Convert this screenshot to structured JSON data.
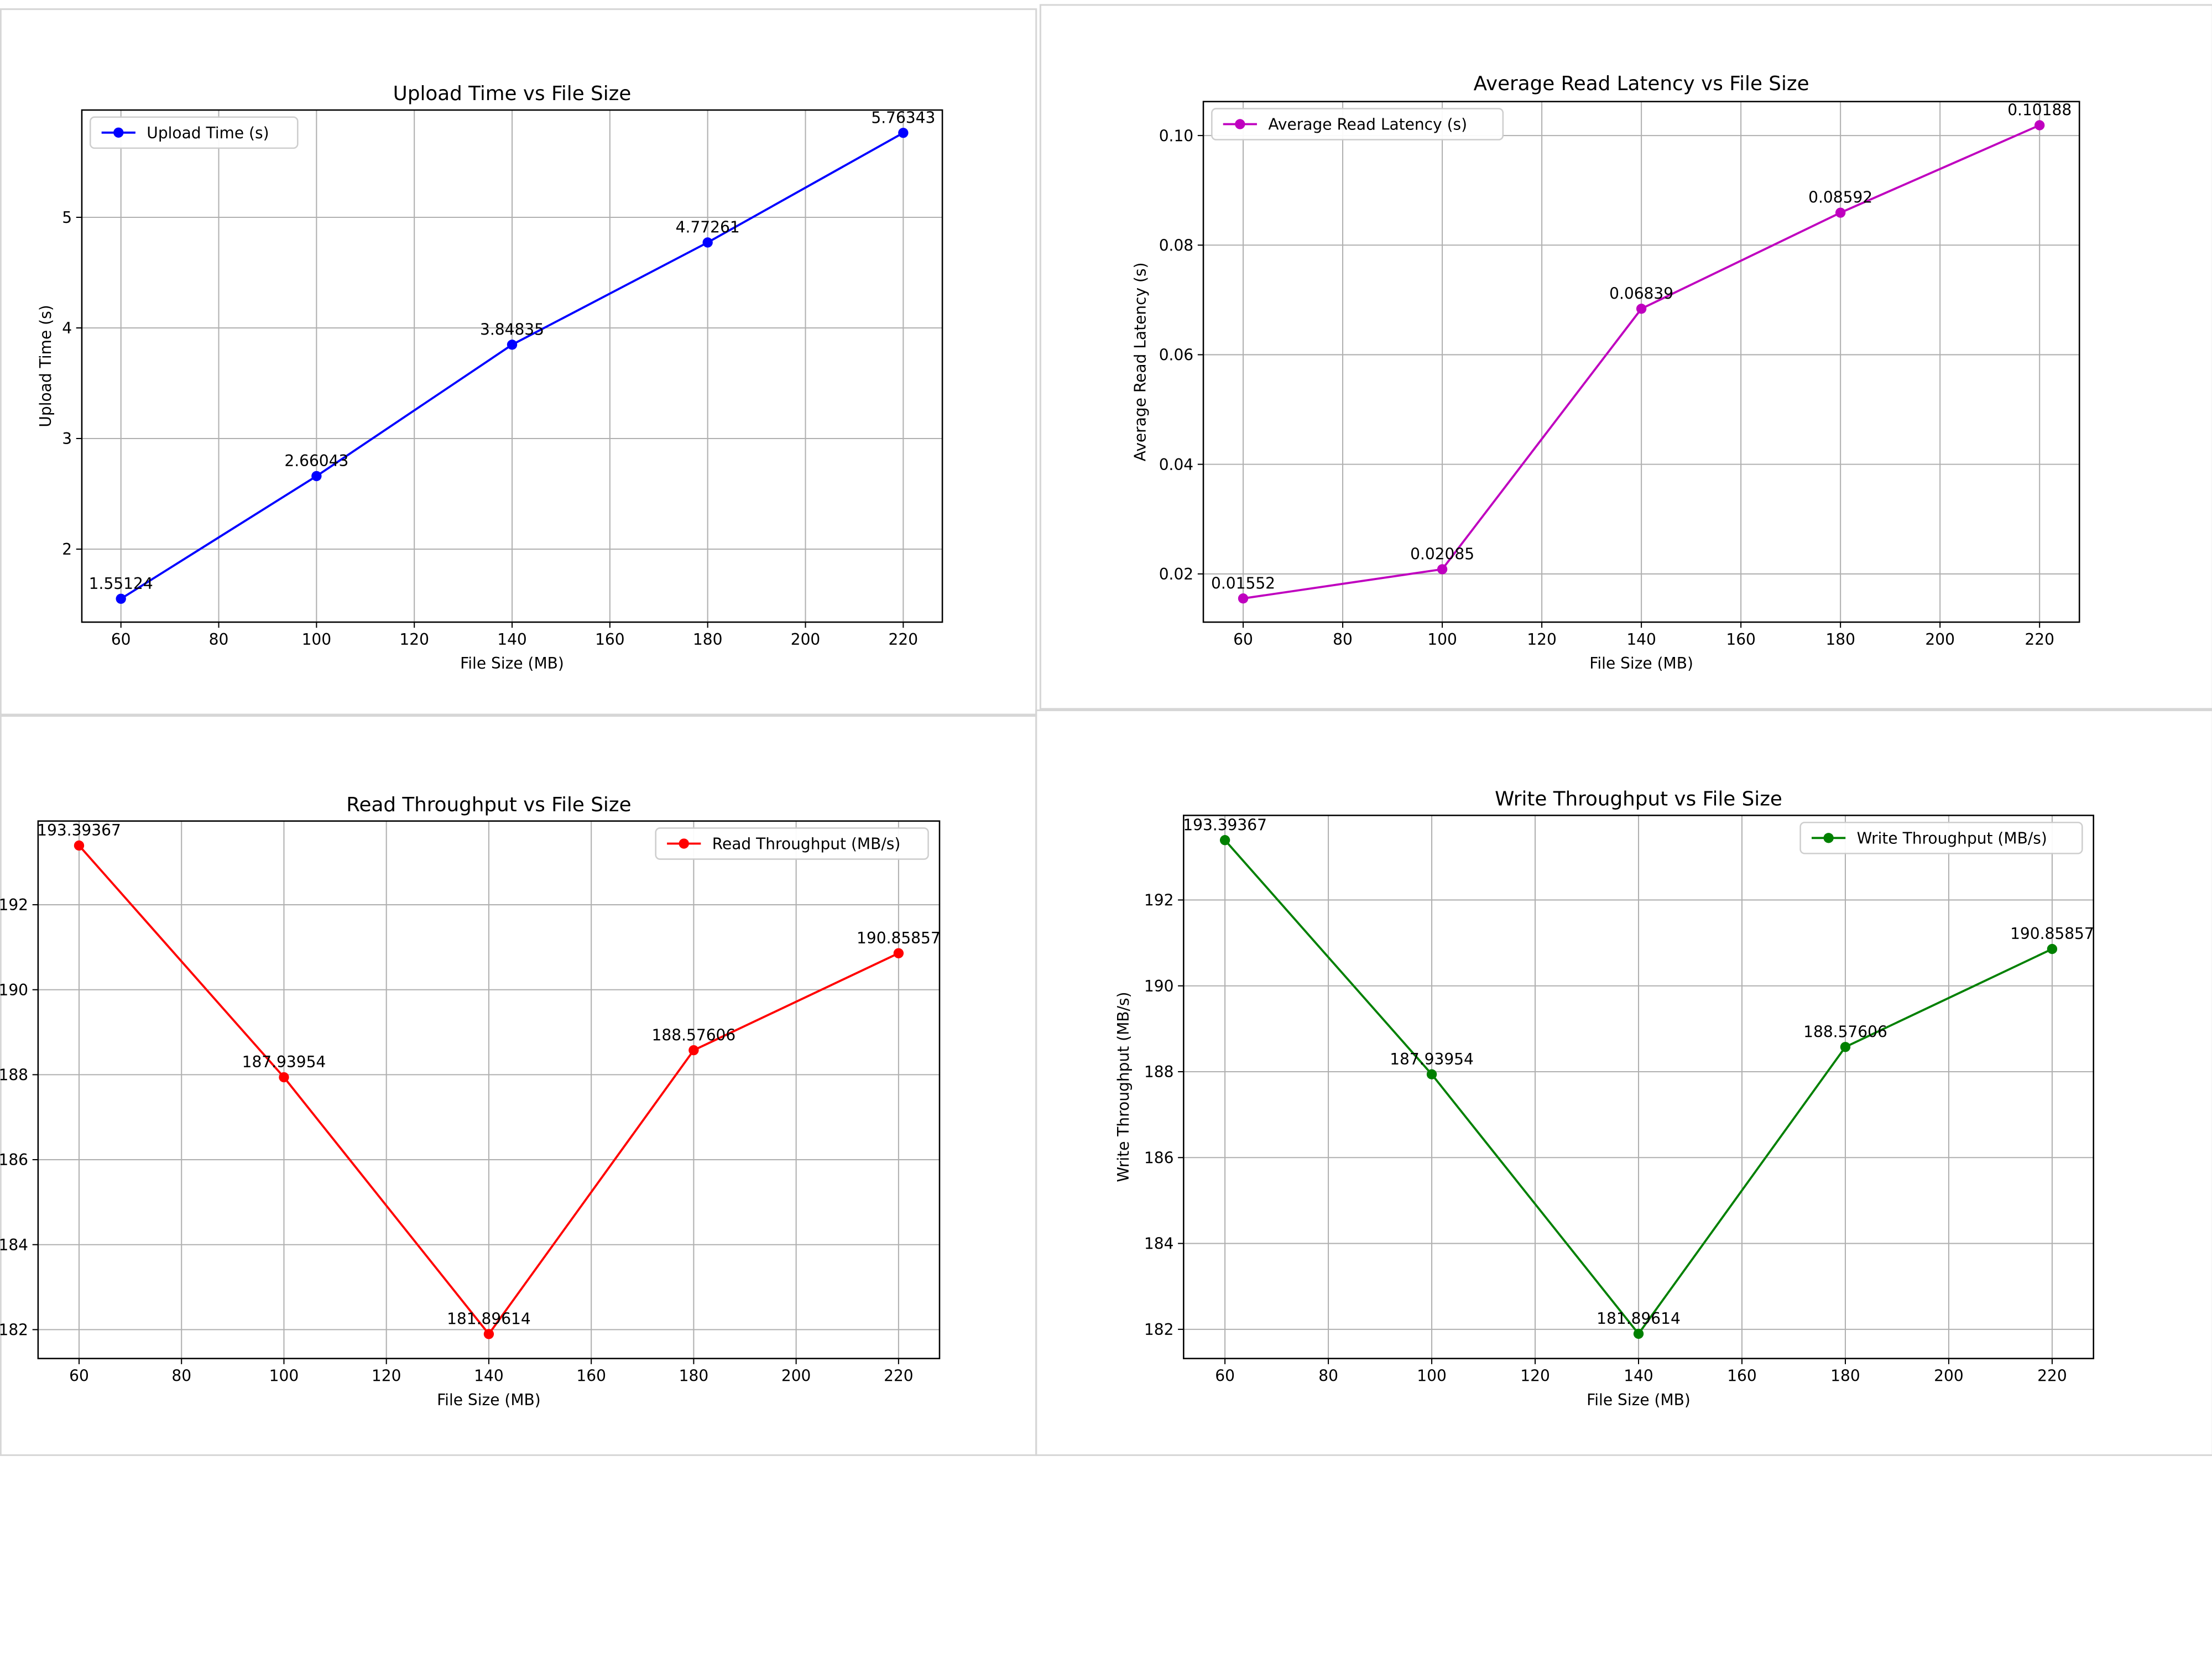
{
  "chart_data": [
    {
      "type": "line",
      "title": "Upload Time vs File Size",
      "xlabel": "File Size (MB)",
      "ylabel": "Upload Time (s)",
      "x": [
        60,
        100,
        140,
        180,
        220
      ],
      "series": [
        {
          "name": "Upload Time (s)",
          "color": "#0000ff",
          "values": [
            1.55124,
            2.66043,
            3.84835,
            4.77261,
            5.76343
          ],
          "data_labels": [
            "1.55124",
            "2.66043",
            "3.84835",
            "4.77261",
            "5.76343"
          ]
        }
      ],
      "xticks": [
        "60",
        "80",
        "100",
        "120",
        "140",
        "160",
        "180",
        "200",
        "220"
      ],
      "yticks": [
        "2",
        "3",
        "4",
        "5"
      ],
      "xlim": [
        52,
        228
      ],
      "ylim": [
        1.34,
        5.97
      ],
      "grid": true,
      "legend": "upper-left",
      "marker": "circle"
    },
    {
      "type": "line",
      "title": "Average Read Latency vs File Size",
      "xlabel": "File Size (MB)",
      "ylabel": "Average Read Latency (s)",
      "x": [
        60,
        100,
        140,
        180,
        220
      ],
      "series": [
        {
          "name": "Average Read Latency (s)",
          "color": "#bf00bf",
          "values": [
            0.01552,
            0.02085,
            0.06839,
            0.08592,
            0.10188
          ],
          "data_labels": [
            "0.01552",
            "0.02085",
            "0.06839",
            "0.08592",
            "0.10188"
          ]
        }
      ],
      "xticks": [
        "60",
        "80",
        "100",
        "120",
        "140",
        "160",
        "180",
        "200",
        "220"
      ],
      "yticks": [
        "0.02",
        "0.04",
        "0.06",
        "0.08",
        "0.10"
      ],
      "xlim": [
        52,
        228
      ],
      "ylim": [
        0.0112,
        0.1062
      ],
      "grid": true,
      "legend": "upper-left",
      "marker": "circle"
    },
    {
      "type": "line",
      "title": "Read Throughput vs File Size",
      "xlabel": "File Size (MB)",
      "ylabel": "",
      "x": [
        60,
        100,
        140,
        180,
        220
      ],
      "series": [
        {
          "name": "Read Throughput (MB/s)",
          "color": "#ff0000",
          "values": [
            193.39367,
            187.93954,
            181.89614,
            188.57606,
            190.85857
          ],
          "data_labels": [
            "193.39367",
            "187.93954",
            "181.89614",
            "188.57606",
            "190.85857"
          ]
        }
      ],
      "xticks": [
        "60",
        "80",
        "100",
        "120",
        "140",
        "160",
        "180",
        "200",
        "220"
      ],
      "yticks": [
        "182",
        "184",
        "186",
        "188",
        "190",
        "192"
      ],
      "xlim": [
        52,
        228
      ],
      "ylim": [
        181.32,
        193.97
      ],
      "grid": true,
      "legend": "upper-right",
      "marker": "circle"
    },
    {
      "type": "line",
      "title": "Write Throughput vs File Size",
      "xlabel": "File Size (MB)",
      "ylabel": "Write Throughput (MB/s)",
      "x": [
        60,
        100,
        140,
        180,
        220
      ],
      "series": [
        {
          "name": "Write Throughput (MB/s)",
          "color": "#008000",
          "values": [
            193.39367,
            187.93954,
            181.89614,
            188.57606,
            190.85857
          ],
          "data_labels": [
            "193.39367",
            "187.93954",
            "181.89614",
            "188.57606",
            "190.85857"
          ]
        }
      ],
      "xticks": [
        "60",
        "80",
        "100",
        "120",
        "140",
        "160",
        "180",
        "200",
        "220"
      ],
      "yticks": [
        "182",
        "184",
        "186",
        "188",
        "190",
        "192"
      ],
      "xlim": [
        52,
        228
      ],
      "ylim": [
        181.32,
        193.97
      ],
      "grid": true,
      "legend": "upper-right",
      "marker": "circle"
    }
  ]
}
